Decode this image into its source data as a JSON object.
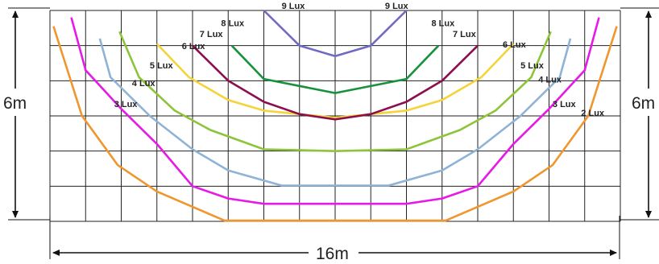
{
  "dimensions": {
    "height_left": "6m",
    "height_right": "6m",
    "width": "16m"
  },
  "chart_data": {
    "type": "line",
    "grid": true,
    "grid_cells": {
      "columns": 16,
      "rows": 6
    },
    "x_units": "m",
    "y_units": "m",
    "xlim": [
      0,
      16
    ],
    "ylim": [
      0,
      6
    ],
    "y_direction": "down",
    "series": [
      {
        "name": "2 Lux",
        "color": "#f0962e",
        "points": [
          [
            0.1,
            0.45
          ],
          [
            0.9,
            3.0
          ],
          [
            1.9,
            4.4
          ],
          [
            3.0,
            5.15
          ],
          [
            4.9,
            5.98
          ],
          [
            11.1,
            5.98
          ],
          [
            13.0,
            5.15
          ],
          [
            14.1,
            4.4
          ],
          [
            15.1,
            3.0
          ],
          [
            15.9,
            0.45
          ]
        ]
      },
      {
        "name": "3 Lux",
        "color": "#e619e6",
        "points": [
          [
            0.6,
            0.2
          ],
          [
            1.0,
            1.7
          ],
          [
            2.0,
            2.8
          ],
          [
            3.0,
            3.8
          ],
          [
            4.0,
            5.0
          ],
          [
            5.0,
            5.35
          ],
          [
            6.0,
            5.5
          ],
          [
            10.0,
            5.5
          ],
          [
            11.0,
            5.35
          ],
          [
            12.0,
            5.0
          ],
          [
            13.0,
            3.8
          ],
          [
            14.0,
            2.8
          ],
          [
            15.0,
            1.7
          ],
          [
            15.4,
            0.2
          ]
        ]
      },
      {
        "name": "4 Lux",
        "color": "#8fb3d6",
        "points": [
          [
            1.4,
            0.8
          ],
          [
            1.7,
            1.9
          ],
          [
            2.8,
            3.0
          ],
          [
            4.0,
            3.95
          ],
          [
            5.0,
            4.55
          ],
          [
            6.5,
            4.98
          ],
          [
            9.5,
            4.98
          ],
          [
            11.0,
            4.55
          ],
          [
            12.0,
            3.95
          ],
          [
            13.2,
            3.0
          ],
          [
            14.3,
            1.9
          ],
          [
            14.6,
            0.8
          ]
        ]
      },
      {
        "name": "5 Lux",
        "color": "#8dc43a",
        "points": [
          [
            1.95,
            0.6
          ],
          [
            2.5,
            1.9
          ],
          [
            3.5,
            2.85
          ],
          [
            4.5,
            3.4
          ],
          [
            6.0,
            3.95
          ],
          [
            8.0,
            4.0
          ],
          [
            10.0,
            3.95
          ],
          [
            11.5,
            3.4
          ],
          [
            12.5,
            2.85
          ],
          [
            13.5,
            1.9
          ],
          [
            14.05,
            0.6
          ]
        ]
      },
      {
        "name": "6 Lux",
        "color": "#f5d33a",
        "points": [
          [
            3.0,
            0.95
          ],
          [
            3.9,
            1.9
          ],
          [
            5.0,
            2.55
          ],
          [
            6.0,
            2.85
          ],
          [
            8.0,
            3.05
          ],
          [
            10.0,
            2.85
          ],
          [
            11.0,
            2.55
          ],
          [
            12.1,
            1.9
          ],
          [
            13.0,
            0.95
          ]
        ]
      },
      {
        "name": "7 Lux",
        "color": "#8b0f50",
        "points": [
          [
            4.0,
            1.0
          ],
          [
            5.0,
            2.0
          ],
          [
            6.0,
            2.6
          ],
          [
            7.0,
            2.95
          ],
          [
            8.0,
            3.1
          ],
          [
            9.0,
            2.95
          ],
          [
            10.0,
            2.6
          ],
          [
            11.0,
            2.0
          ],
          [
            12.0,
            1.0
          ]
        ]
      },
      {
        "name": "8 Lux",
        "color": "#17923a",
        "points": [
          [
            5.1,
            1.0
          ],
          [
            6.0,
            1.95
          ],
          [
            8.0,
            2.35
          ],
          [
            10.0,
            1.95
          ],
          [
            10.9,
            1.0
          ]
        ]
      },
      {
        "name": "9 Lux",
        "color": "#6f6bc4",
        "points": [
          [
            6.0,
            0.0
          ],
          [
            7.0,
            1.0
          ],
          [
            8.0,
            1.3
          ],
          [
            9.0,
            1.0
          ],
          [
            10.0,
            0.0
          ]
        ]
      }
    ],
    "labels": [
      {
        "text": "2 Lux",
        "x": -1.2,
        "y": 3.0
      },
      {
        "text": "3 Lux",
        "x": 1.8,
        "y": 2.75
      },
      {
        "text": "4 Lux",
        "x": 2.3,
        "y": 2.15
      },
      {
        "text": "5 Lux",
        "x": 2.8,
        "y": 1.65
      },
      {
        "text": "6 Lux",
        "x": 3.7,
        "y": 1.1
      },
      {
        "text": "7 Lux",
        "x": 4.2,
        "y": 0.75
      },
      {
        "text": "8 Lux",
        "x": 4.8,
        "y": 0.45
      },
      {
        "text": "9 Lux",
        "x": 6.5,
        "y": -0.05
      },
      {
        "text": "9 Lux",
        "x": 9.4,
        "y": -0.05
      },
      {
        "text": "8 Lux",
        "x": 10.7,
        "y": 0.45
      },
      {
        "text": "7 Lux",
        "x": 11.3,
        "y": 0.75
      },
      {
        "text": "6 Lux",
        "x": 12.7,
        "y": 1.05
      },
      {
        "text": "5 Lux",
        "x": 13.2,
        "y": 1.65
      },
      {
        "text": "4 Lux",
        "x": 13.7,
        "y": 2.05
      },
      {
        "text": "3 Lux",
        "x": 14.1,
        "y": 2.75
      },
      {
        "text": "2 Lux",
        "x": 14.9,
        "y": 3.0
      }
    ]
  }
}
